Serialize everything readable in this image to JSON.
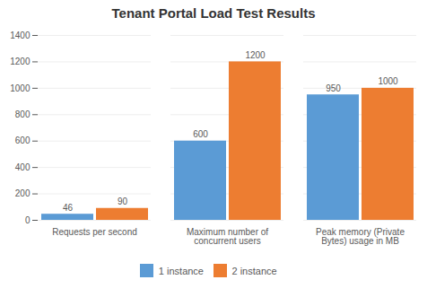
{
  "chart_data": {
    "type": "bar",
    "title": "Tenant Portal Load Test Results",
    "categories": [
      "Requests per second",
      "Maximum number of\nconcurrent users",
      "Peak memory (Private\nBytes) usage in MB"
    ],
    "series": [
      {
        "name": "1 instance",
        "color": "#5b9bd5",
        "values": [
          46,
          600,
          950
        ]
      },
      {
        "name": "2 instance",
        "color": "#ed7d31",
        "values": [
          90,
          1200,
          1000
        ]
      }
    ],
    "ylim": [
      0,
      1400
    ],
    "yticks": [
      0,
      200,
      400,
      600,
      800,
      1000,
      1200,
      1400
    ],
    "grid": true,
    "legend": "bottom",
    "data_labels": true
  }
}
